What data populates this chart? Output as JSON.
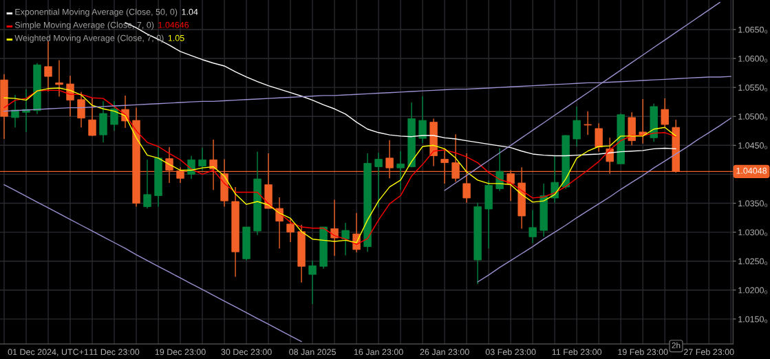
{
  "chart_data": {
    "type": "candlestick",
    "categories": [
      null,
      null,
      null,
      null,
      "01 Dec 2024, UTC+1",
      null,
      null,
      null,
      null,
      null,
      "11 Dec 23:00",
      null,
      null,
      null,
      null,
      null,
      "19 Dec 23:00",
      null,
      null,
      null,
      null,
      null,
      "30 Dec 23:00",
      null,
      null,
      null,
      null,
      null,
      "08 Jan 2025",
      null,
      null,
      null,
      null,
      null,
      "16 Jan 23:00",
      null,
      null,
      null,
      null,
      null,
      "26 Jan 23:00",
      null,
      null,
      null,
      null,
      null,
      "03 Feb 23:00",
      null,
      null,
      null,
      null,
      null,
      "11 Feb 23:00",
      null,
      null,
      null,
      null,
      null,
      "19 Feb 23:00",
      null,
      null,
      null,
      null,
      null,
      "27 Feb 23:00",
      null,
      null
    ],
    "ohlc": [
      [
        1.0563,
        1.0573,
        1.0461,
        1.05
      ],
      [
        1.0498,
        1.0537,
        1.0481,
        1.0511
      ],
      [
        1.0507,
        1.0547,
        1.0473,
        1.0512
      ],
      [
        1.051,
        1.0592,
        1.0504,
        1.0589
      ],
      [
        1.0586,
        1.063,
        1.0543,
        1.0569
      ],
      [
        1.0558,
        1.0597,
        1.0534,
        1.0555
      ],
      [
        1.0556,
        1.057,
        1.05,
        1.0528
      ],
      [
        1.0529,
        1.0542,
        1.0481,
        1.0497
      ],
      [
        1.0494,
        1.0532,
        1.0466,
        1.0467
      ],
      [
        1.0468,
        1.0526,
        1.0455,
        1.0505
      ],
      [
        1.0486,
        1.0526,
        1.0475,
        1.0513
      ],
      [
        1.0512,
        1.0536,
        1.048,
        1.0492
      ],
      [
        1.0493,
        1.0515,
        1.0344,
        1.035
      ],
      [
        1.0344,
        1.0425,
        1.0341,
        1.0365
      ],
      [
        1.0363,
        1.0449,
        1.0344,
        1.0428
      ],
      [
        1.0427,
        1.0447,
        1.0385,
        1.0407
      ],
      [
        1.0406,
        1.0412,
        1.0385,
        1.0393
      ],
      [
        1.04,
        1.0432,
        1.0392,
        1.0425
      ],
      [
        1.0414,
        1.0446,
        1.0407,
        1.0425
      ],
      [
        1.0425,
        1.046,
        1.0373,
        1.0409
      ],
      [
        1.0401,
        1.0426,
        1.0344,
        1.0354
      ],
      [
        1.0353,
        1.0378,
        1.0223,
        1.0266
      ],
      [
        1.0254,
        1.0309,
        1.0251,
        1.0309
      ],
      [
        1.0302,
        1.0439,
        1.0295,
        1.0392
      ],
      [
        1.0382,
        1.0436,
        1.0341,
        1.0341
      ],
      [
        1.0341,
        1.036,
        1.0272,
        1.0319
      ],
      [
        1.0314,
        1.0323,
        1.0283,
        1.03
      ],
      [
        1.0301,
        1.0313,
        1.0213,
        1.0241
      ],
      [
        1.0227,
        1.0251,
        1.0176,
        1.0242
      ],
      [
        1.0241,
        1.0309,
        1.0237,
        1.0309
      ],
      [
        1.0306,
        1.0356,
        1.0259,
        1.029
      ],
      [
        1.0288,
        1.0316,
        1.026,
        1.0303
      ],
      [
        1.0297,
        1.0333,
        1.0265,
        1.027
      ],
      [
        1.0275,
        1.0436,
        1.0266,
        1.0419
      ],
      [
        1.0413,
        1.0437,
        1.0343,
        1.0426
      ],
      [
        1.0428,
        1.0459,
        1.0393,
        1.0411
      ],
      [
        1.0411,
        1.044,
        1.0373,
        1.0418
      ],
      [
        1.0413,
        1.0524,
        1.0412,
        1.0496
      ],
      [
        1.0462,
        1.0535,
        1.0454,
        1.0493
      ],
      [
        1.049,
        1.0496,
        1.0414,
        1.0432
      ],
      [
        1.0426,
        1.0444,
        1.0384,
        1.042
      ],
      [
        1.042,
        1.0469,
        1.0387,
        1.0393
      ],
      [
        1.0384,
        1.0436,
        1.0351,
        1.0359
      ],
      [
        1.0252,
        1.0351,
        1.021,
        1.0344
      ],
      [
        1.034,
        1.0389,
        1.0272,
        1.0381
      ],
      [
        1.0375,
        1.0445,
        1.0371,
        1.0405
      ],
      [
        1.0401,
        1.0407,
        1.0354,
        1.0384
      ],
      [
        1.0385,
        1.0412,
        1.0306,
        1.0328
      ],
      [
        1.0292,
        1.0338,
        1.0281,
        1.0308
      ],
      [
        1.0303,
        1.0384,
        1.0292,
        1.0363
      ],
      [
        1.0359,
        1.0432,
        1.0351,
        1.0386
      ],
      [
        1.0378,
        1.0468,
        1.0375,
        1.0467
      ],
      [
        1.0461,
        1.0517,
        1.0448,
        1.0493
      ],
      [
        1.0486,
        1.0509,
        1.0468,
        1.0485
      ],
      [
        1.0479,
        1.0488,
        1.0439,
        1.0447
      ],
      [
        1.0444,
        1.0463,
        1.0401,
        1.0422
      ],
      [
        1.0418,
        1.0505,
        1.0418,
        1.0503
      ],
      [
        1.0498,
        1.0507,
        1.045,
        1.0458
      ],
      [
        1.0473,
        1.053,
        1.0453,
        1.0468
      ],
      [
        1.0463,
        1.0522,
        1.0456,
        1.0517
      ],
      [
        1.0512,
        1.0531,
        1.0482,
        1.0486
      ],
      [
        1.0481,
        1.0494,
        1.0403,
        1.04048
      ],
      null,
      null,
      null,
      null,
      null
    ],
    "colors": [
      "#f26127",
      "#00843d",
      "#00843d",
      "#00843d",
      "#f26127",
      "#f26127",
      "#f26127",
      "#f26127",
      "#f26127",
      "#00843d",
      "#00843d",
      "#f26127",
      "#f26127",
      "#00843d",
      "#00843d",
      "#f26127",
      "#f26127",
      "#00843d",
      "#00843d",
      "#f26127",
      "#f26127",
      "#f26127",
      "#00843d",
      "#00843d",
      "#f26127",
      "#f26127",
      "#f26127",
      "#f26127",
      "#00843d",
      "#00843d",
      "#f26127",
      "#00843d",
      "#f26127",
      "#00843d",
      "#00843d",
      "#f26127",
      "#00843d",
      "#00843d",
      "#00843d",
      "#f26127",
      "#f26127",
      "#f26127",
      "#f26127",
      "#00843d",
      "#00843d",
      "#00843d",
      "#f26127",
      "#f26127",
      "#00843d",
      "#00843d",
      "#00843d",
      "#00843d",
      "#00843d",
      "#f26127",
      "#f26127",
      "#f26127",
      "#00843d",
      "#f26127",
      "#f26127",
      "#00843d",
      "#f26127",
      "#f26127",
      null,
      null,
      null,
      null,
      null
    ],
    "series": [
      {
        "type": "line",
        "name": "Exponential Moving Average (Close, 50, 0)",
        "color": "#ffffff",
        "values": [
          null,
          null,
          null,
          null,
          null,
          null,
          null,
          null,
          null,
          null,
          null,
          1.0662,
          1.0653,
          1.0642,
          1.0633,
          1.0623,
          1.0612,
          1.0605,
          1.0598,
          1.0592,
          1.0587,
          1.0577,
          1.0568,
          1.056,
          1.0553,
          1.0547,
          1.0541,
          1.0535,
          1.0528,
          1.052,
          1.0513,
          1.0504,
          1.049,
          1.0478,
          1.0472,
          1.0468,
          1.0466,
          1.0465,
          1.0467,
          1.0467,
          1.0463,
          1.0461,
          1.0458,
          1.0455,
          1.0452,
          1.0449,
          1.0446,
          1.044,
          1.0435,
          1.0433,
          1.0432,
          1.0432,
          1.0433,
          1.0434,
          1.0435,
          1.0437,
          1.0439,
          1.044,
          1.0441,
          1.0444,
          1.0445,
          1.0444,
          null,
          null,
          null,
          null,
          null
        ]
      },
      {
        "type": "line",
        "name": "Simple Moving Average (Close, 7, 0)",
        "color": "#ff0000",
        "values": [
          1.0515,
          1.0528,
          1.0531,
          1.0544,
          1.0545,
          1.0545,
          1.0538,
          1.0538,
          1.0532,
          1.0531,
          1.0517,
          1.0503,
          1.0475,
          1.0455,
          1.0448,
          1.0436,
          1.0425,
          1.0409,
          1.04,
          1.0407,
          1.0384,
          1.0369,
          1.0369,
          1.0369,
          1.0349,
          1.0333,
          1.0317,
          1.0309,
          1.0307,
          1.0307,
          1.0294,
          1.0288,
          1.0279,
          1.0289,
          1.0321,
          1.0349,
          1.0363,
          1.0397,
          1.0417,
          1.044,
          1.0442,
          1.0437,
          1.043,
          1.042,
          1.0403,
          1.0391,
          1.0385,
          1.0372,
          1.0359,
          1.0361,
          1.0368,
          1.0379,
          1.0393,
          1.0407,
          1.0422,
          1.0442,
          1.0458,
          1.0467,
          1.0467,
          1.0471,
          1.0472,
          1.0465,
          null,
          null,
          null,
          null,
          null
        ]
      },
      {
        "type": "line",
        "name": "Weighted Moving Average (Close, 7, 0)",
        "color": "#ffff00",
        "values": [
          1.0532,
          1.0531,
          1.0528,
          1.0544,
          1.0548,
          1.0549,
          1.0545,
          1.0537,
          1.0519,
          1.0513,
          1.0509,
          1.0501,
          1.0463,
          1.0433,
          1.0428,
          1.0417,
          1.0407,
          1.0407,
          1.0411,
          1.0413,
          1.0397,
          1.0366,
          1.0348,
          1.0353,
          1.0347,
          1.0333,
          1.0324,
          1.0301,
          1.0288,
          1.0286,
          1.0284,
          1.0286,
          1.0282,
          1.0321,
          1.0354,
          1.0378,
          1.039,
          1.0422,
          1.0448,
          1.045,
          1.0444,
          1.0428,
          1.0404,
          1.039,
          1.0384,
          1.0384,
          1.0382,
          1.0365,
          1.0352,
          1.0354,
          1.0365,
          1.0392,
          1.0428,
          1.044,
          1.0448,
          1.0449,
          1.0466,
          1.0466,
          1.0466,
          1.0478,
          1.0481,
          1.0466,
          null,
          null,
          null,
          null,
          null
        ]
      },
      {
        "type": "line",
        "color": "#9d8fd0",
        "values": [
          1.0382,
          1.0372,
          1.0362,
          1.0352,
          1.0342,
          1.0332,
          1.0322,
          1.0312,
          1.0302,
          1.0292,
          1.0282,
          1.0272,
          1.0261,
          1.0251,
          1.0241,
          1.0231,
          1.0221,
          1.0211,
          1.0201,
          1.0191,
          1.0181,
          1.0171,
          1.0161,
          1.0151,
          1.0141,
          1.0131,
          1.0121,
          1.0111,
          null,
          null,
          null,
          null,
          null,
          null,
          null,
          null,
          null,
          null,
          null,
          null,
          null,
          null,
          null,
          null,
          null,
          null,
          null,
          null,
          null,
          null,
          null,
          null,
          null,
          null,
          null,
          null,
          null,
          null,
          null,
          null,
          null,
          null,
          null,
          null,
          null,
          null,
          null
        ]
      },
      {
        "type": "line",
        "color": "#9d8fd0",
        "values": [
          1.0509,
          1.051,
          1.0511,
          1.0512,
          1.0513,
          1.0514,
          1.0515,
          1.0515,
          1.0516,
          1.0517,
          1.0518,
          1.0519,
          1.052,
          1.0521,
          1.0522,
          1.0523,
          1.0524,
          1.0525,
          1.0526,
          1.0526,
          1.0527,
          1.0528,
          1.0529,
          1.053,
          1.0531,
          1.0532,
          1.0533,
          1.0534,
          1.0535,
          1.0536,
          1.0536,
          1.0537,
          1.0538,
          1.0539,
          1.054,
          1.0541,
          1.0542,
          1.0543,
          1.0544,
          1.0545,
          1.0546,
          1.0547,
          1.0547,
          1.0548,
          1.0549,
          1.055,
          1.0551,
          1.0552,
          1.0553,
          1.0554,
          1.0555,
          1.0556,
          1.0557,
          1.0558,
          1.0558,
          1.0559,
          1.056,
          1.0561,
          1.0562,
          1.0563,
          1.0564,
          1.0565,
          1.0566,
          1.0567,
          1.0568,
          1.0568,
          1.0569
        ]
      },
      {
        "type": "line",
        "color": "#9d8fd0",
        "values": [
          null,
          null,
          null,
          null,
          null,
          null,
          null,
          null,
          null,
          null,
          null,
          null,
          null,
          null,
          null,
          null,
          null,
          null,
          null,
          null,
          null,
          null,
          null,
          null,
          null,
          null,
          null,
          null,
          null,
          null,
          null,
          null,
          null,
          null,
          null,
          null,
          null,
          null,
          null,
          null,
          1.0372,
          1.0385,
          1.0398,
          1.0411,
          1.0424,
          1.0437,
          1.045,
          1.0463,
          1.0476,
          1.0489,
          1.0502,
          1.0515,
          1.0528,
          1.0541,
          1.0554,
          1.0567,
          1.058,
          1.0593,
          1.0606,
          1.0619,
          1.0632,
          1.0645,
          1.0658,
          1.0671,
          1.0684,
          1.0697,
          null
        ]
      },
      {
        "type": "line",
        "color": "#9d8fd0",
        "values": [
          null,
          null,
          null,
          null,
          null,
          null,
          null,
          null,
          null,
          null,
          null,
          null,
          null,
          null,
          null,
          null,
          null,
          null,
          null,
          null,
          null,
          null,
          null,
          null,
          null,
          null,
          null,
          null,
          null,
          null,
          null,
          null,
          null,
          null,
          null,
          null,
          null,
          null,
          null,
          null,
          null,
          null,
          null,
          1.0214,
          1.0226,
          1.0239,
          1.0251,
          1.0263,
          1.0275,
          1.0288,
          1.03,
          1.0312,
          1.0325,
          1.0337,
          1.0349,
          1.0361,
          1.0374,
          1.0386,
          1.0398,
          1.0411,
          1.0423,
          1.0435,
          1.0447,
          1.046,
          1.0472,
          1.0484,
          1.0497
        ]
      }
    ],
    "ylim": [
      1.0107,
      1.0701
    ],
    "yticks": [
      {
        "value": 1.015,
        "label": "1.0150₀"
      },
      {
        "value": 1.02,
        "label": "1.0200₀"
      },
      {
        "value": 1.025,
        "label": "1.0250₀"
      },
      {
        "value": 1.03,
        "label": "1.0300₀"
      },
      {
        "value": 1.035,
        "label": "1.0350₀"
      },
      {
        "value": 1.04,
        "label": null
      },
      {
        "value": 1.045,
        "label": "1.0450₀"
      },
      {
        "value": 1.05,
        "label": "1.0500₀"
      },
      {
        "value": 1.055,
        "label": "1.0550₀"
      },
      {
        "value": 1.06,
        "label": "1.0600₀"
      },
      {
        "value": 1.065,
        "label": "1.0650₀"
      }
    ],
    "ref_lines": [
      {
        "axis": "y",
        "value": 1.04048,
        "label": "1.04048",
        "color": "#f26127"
      }
    ],
    "annotations": [
      "1.04",
      "1.04646",
      "1.05",
      "2h"
    ],
    "grid": true,
    "legend": "top left"
  }
}
